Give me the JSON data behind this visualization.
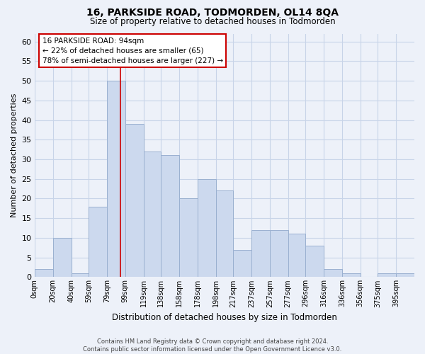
{
  "title": "16, PARKSIDE ROAD, TODMORDEN, OL14 8QA",
  "subtitle": "Size of property relative to detached houses in Todmorden",
  "xlabel": "Distribution of detached houses by size in Todmorden",
  "ylabel": "Number of detached properties",
  "bar_color": "#ccd9ee",
  "bar_edge_color": "#9ab0d0",
  "background_color": "#edf1f9",
  "grid_color": "#c8d4e8",
  "bin_labels": [
    "0sqm",
    "20sqm",
    "40sqm",
    "59sqm",
    "79sqm",
    "99sqm",
    "119sqm",
    "138sqm",
    "158sqm",
    "178sqm",
    "198sqm",
    "217sqm",
    "237sqm",
    "257sqm",
    "277sqm",
    "296sqm",
    "316sqm",
    "336sqm",
    "356sqm",
    "375sqm",
    "395sqm"
  ],
  "bin_edges": [
    0,
    20,
    40,
    59,
    79,
    99,
    119,
    138,
    158,
    178,
    198,
    217,
    237,
    257,
    277,
    296,
    316,
    336,
    356,
    375,
    395,
    415
  ],
  "bar_heights": [
    2,
    10,
    1,
    18,
    50,
    39,
    32,
    31,
    20,
    25,
    22,
    7,
    12,
    12,
    11,
    8,
    2,
    1,
    0,
    1,
    1
  ],
  "ylim": [
    0,
    62
  ],
  "yticks": [
    0,
    5,
    10,
    15,
    20,
    25,
    30,
    35,
    40,
    45,
    50,
    55,
    60
  ],
  "property_line_x": 94,
  "annotation_title": "16 PARKSIDE ROAD: 94sqm",
  "annotation_line1": "← 22% of detached houses are smaller (65)",
  "annotation_line2": "78% of semi-detached houses are larger (227) →",
  "footer_line1": "Contains HM Land Registry data © Crown copyright and database right 2024.",
  "footer_line2": "Contains public sector information licensed under the Open Government Licence v3.0."
}
